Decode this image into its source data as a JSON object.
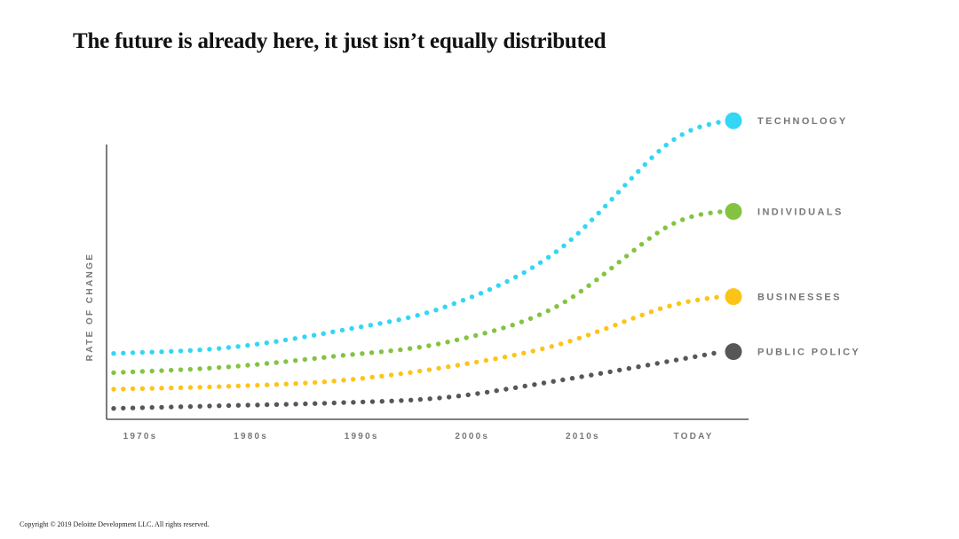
{
  "page": {
    "title": "The future is already here, it just isn’t equally distributed",
    "copyright": "Copyright © 2019 Deloitte Development LLC. All rights reserved."
  },
  "colors": {
    "axis": "#333333",
    "label": "#777777",
    "technology": "#33d6f5",
    "individuals": "#84c341",
    "businesses": "#fcc419",
    "public_policy": "#575757"
  },
  "chart_data": {
    "type": "line",
    "style": "dotted curves with end markers",
    "ylabel": "RATE OF CHANGE",
    "xlabel": "",
    "categories": [
      "1970s",
      "1980s",
      "1990s",
      "2000s",
      "2010s",
      "TODAY"
    ],
    "x": [
      0,
      1,
      2,
      3,
      4,
      5
    ],
    "ylim": [
      0,
      100
    ],
    "grid": false,
    "legend": "labels at right end of each series",
    "series": [
      {
        "name": "TECHNOLOGY",
        "color_key": "technology",
        "values": [
          23,
          25,
          31,
          40,
          60,
          99
        ],
        "end_value": 108
      },
      {
        "name": "INDIVIDUALS",
        "color_key": "individuals",
        "values": [
          16,
          18,
          22,
          27,
          40,
          69
        ],
        "end_value": 75
      },
      {
        "name": "BUSINESSES",
        "color_key": "businesses",
        "values": [
          10,
          11,
          13,
          18,
          26,
          40
        ],
        "end_value": 44
      },
      {
        "name": "PUBLIC POLICY",
        "color_key": "public_policy",
        "values": [
          3,
          4,
          5,
          7,
          13,
          20
        ],
        "end_value": 24
      }
    ]
  }
}
